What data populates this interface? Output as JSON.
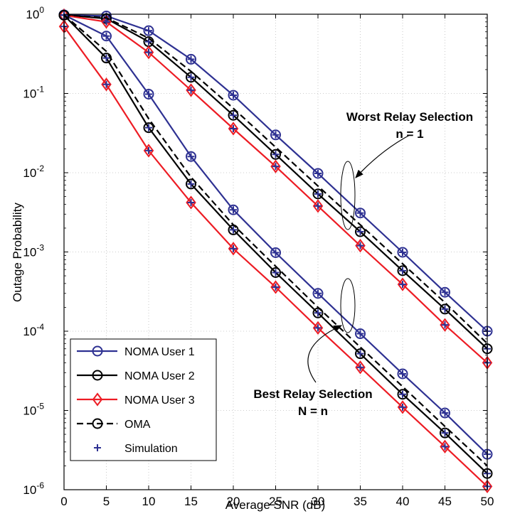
{
  "chart_data": {
    "type": "line",
    "xlabel": "Average SNR (dB)",
    "ylabel": "Outage Probability",
    "xlim": [
      0,
      50
    ],
    "ylim": [
      1e-06,
      1
    ],
    "yscale": "log",
    "grid": true,
    "legend_position": "bottom-left",
    "x": [
      0,
      5,
      10,
      15,
      20,
      25,
      30,
      35,
      40,
      45,
      50
    ],
    "x_tick_labels": [
      "0",
      "5",
      "10",
      "15",
      "20",
      "25",
      "30",
      "35",
      "40",
      "45",
      "50"
    ],
    "y_ticks": [
      {
        "base": "10",
        "exp": "0"
      },
      {
        "base": "10",
        "exp": "-1"
      },
      {
        "base": "10",
        "exp": "-2"
      },
      {
        "base": "10",
        "exp": "-3"
      },
      {
        "base": "10",
        "exp": "-4"
      },
      {
        "base": "10",
        "exp": "-5"
      },
      {
        "base": "10",
        "exp": "-6"
      }
    ],
    "series": [
      {
        "group": "Worst Relay Selection",
        "name": "NOMA User 1",
        "color": "#2e3192",
        "marker": "circle",
        "dash": "solid",
        "values": [
          0.98,
          0.95,
          0.62,
          0.27,
          0.095,
          0.03,
          0.0098,
          0.0031,
          0.00099,
          0.00031,
          0.0001
        ]
      },
      {
        "group": "Worst Relay Selection",
        "name": "NOMA User 2",
        "color": "#000000",
        "marker": "circle",
        "dash": "solid",
        "values": [
          0.98,
          0.88,
          0.45,
          0.16,
          0.053,
          0.017,
          0.0054,
          0.0018,
          0.00058,
          0.00019,
          6e-05
        ]
      },
      {
        "group": "Worst Relay Selection",
        "name": "NOMA User 3",
        "color": "#ed1c24",
        "marker": "diamond",
        "dash": "solid",
        "values": [
          0.97,
          0.8,
          0.33,
          0.11,
          0.036,
          0.012,
          0.0038,
          0.0012,
          0.00039,
          0.00012,
          4e-05
        ]
      },
      {
        "group": "Worst Relay Selection",
        "name": "OMA",
        "color": "#000000",
        "marker": "circle",
        "dash": "dashed",
        "values": [
          0.98,
          0.9,
          0.5,
          0.19,
          0.065,
          0.021,
          0.0068,
          0.0022,
          0.00071,
          0.00023,
          7e-05
        ]
      },
      {
        "group": "Best Relay Selection",
        "name": "NOMA User 1",
        "color": "#2e3192",
        "marker": "circle",
        "dash": "solid",
        "values": [
          0.98,
          0.53,
          0.098,
          0.016,
          0.0034,
          0.00098,
          0.0003,
          9.3e-05,
          2.9e-05,
          9.3e-06,
          2.8e-06
        ]
      },
      {
        "group": "Best Relay Selection",
        "name": "NOMA User 2",
        "color": "#000000",
        "marker": "circle",
        "dash": "solid",
        "values": [
          0.97,
          0.28,
          0.037,
          0.0072,
          0.0019,
          0.00055,
          0.00017,
          5.2e-05,
          1.6e-05,
          5.2e-06,
          1.6e-06
        ]
      },
      {
        "group": "Best Relay Selection",
        "name": "NOMA User 3",
        "color": "#ed1c24",
        "marker": "diamond",
        "dash": "solid",
        "values": [
          0.7,
          0.13,
          0.019,
          0.0042,
          0.0011,
          0.00036,
          0.00011,
          3.5e-05,
          1.1e-05,
          3.5e-06,
          1.1e-06
        ]
      },
      {
        "group": "Best Relay Selection",
        "name": "OMA",
        "color": "#000000",
        "marker": "circle",
        "dash": "dashed",
        "values": [
          0.98,
          0.34,
          0.048,
          0.0088,
          0.0022,
          0.00066,
          0.0002,
          6.3e-05,
          2e-05,
          6.3e-06,
          2e-06
        ]
      }
    ],
    "simulation_color": "#2e3192",
    "legend": [
      {
        "label": "NOMA User 1",
        "color": "#2e3192",
        "marker": "circle",
        "dash": "solid"
      },
      {
        "label": "NOMA User 2",
        "color": "#000000",
        "marker": "circle",
        "dash": "solid"
      },
      {
        "label": "NOMA User 3",
        "color": "#ed1c24",
        "marker": "diamond",
        "dash": "solid"
      },
      {
        "label": "OMA",
        "color": "#000000",
        "marker": "circle",
        "dash": "dashed"
      },
      {
        "label": "Simulation",
        "color": "#2e3192",
        "marker": "plus",
        "dash": "none"
      }
    ],
    "annotations": {
      "worst_line1": "Worst Relay Selection",
      "worst_line2": "n = 1",
      "best_line1": "Best Relay Selection",
      "best_line2": "N = n"
    }
  }
}
